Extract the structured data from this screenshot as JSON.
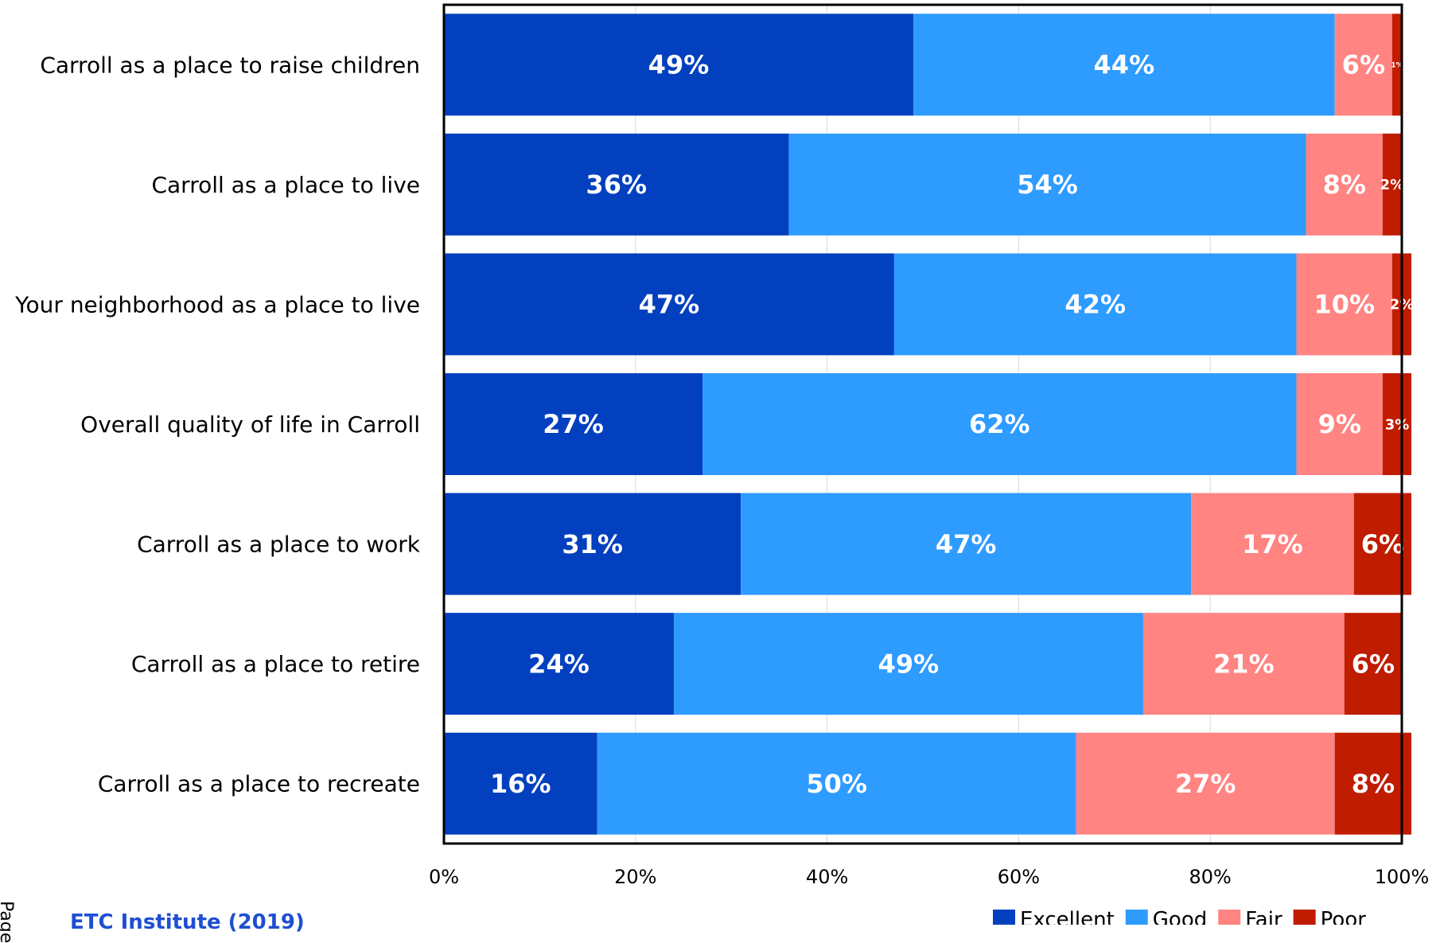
{
  "chart_data": {
    "type": "bar",
    "orientation": "horizontal",
    "stacked": true,
    "categories": [
      "Carroll as a place to raise children",
      "Carroll as a place to live",
      "Your neighborhood as a place to live",
      "Overall quality of life in Carroll",
      "Carroll as a place to work",
      "Carroll as a place to retire",
      "Carroll as a place to recreate"
    ],
    "series": [
      {
        "name": "Excellent",
        "color": "#0340bf",
        "values": [
          49,
          36,
          47,
          27,
          31,
          24,
          16
        ]
      },
      {
        "name": "Good",
        "color": "#2e9bff",
        "values": [
          44,
          54,
          42,
          62,
          47,
          49,
          50
        ]
      },
      {
        "name": "Fair",
        "color": "#ff8482",
        "values": [
          6,
          8,
          10,
          9,
          17,
          21,
          27
        ]
      },
      {
        "name": "Poor",
        "color": "#bf1c00",
        "values": [
          1,
          2,
          2,
          3,
          6,
          6,
          8
        ]
      }
    ],
    "data_labels": [
      [
        "49%",
        "44%",
        "6%",
        "1%"
      ],
      [
        "36%",
        "54%",
        "8%",
        "2%"
      ],
      [
        "47%",
        "42%",
        "10%",
        "2%"
      ],
      [
        "27%",
        "62%",
        "9%",
        "3%"
      ],
      [
        "31%",
        "47%",
        "17%",
        "6%"
      ],
      [
        "24%",
        "49%",
        "21%",
        "6%"
      ],
      [
        "16%",
        "50%",
        "27%",
        "8%"
      ]
    ],
    "x_ticks": [
      "0%",
      "20%",
      "40%",
      "60%",
      "80%",
      "100%"
    ],
    "xlim": [
      0,
      100
    ],
    "grid": true,
    "legend_position": "bottom-right"
  },
  "footer": {
    "source_text": "ETC Institute (2019)",
    "page_label": "Page"
  }
}
